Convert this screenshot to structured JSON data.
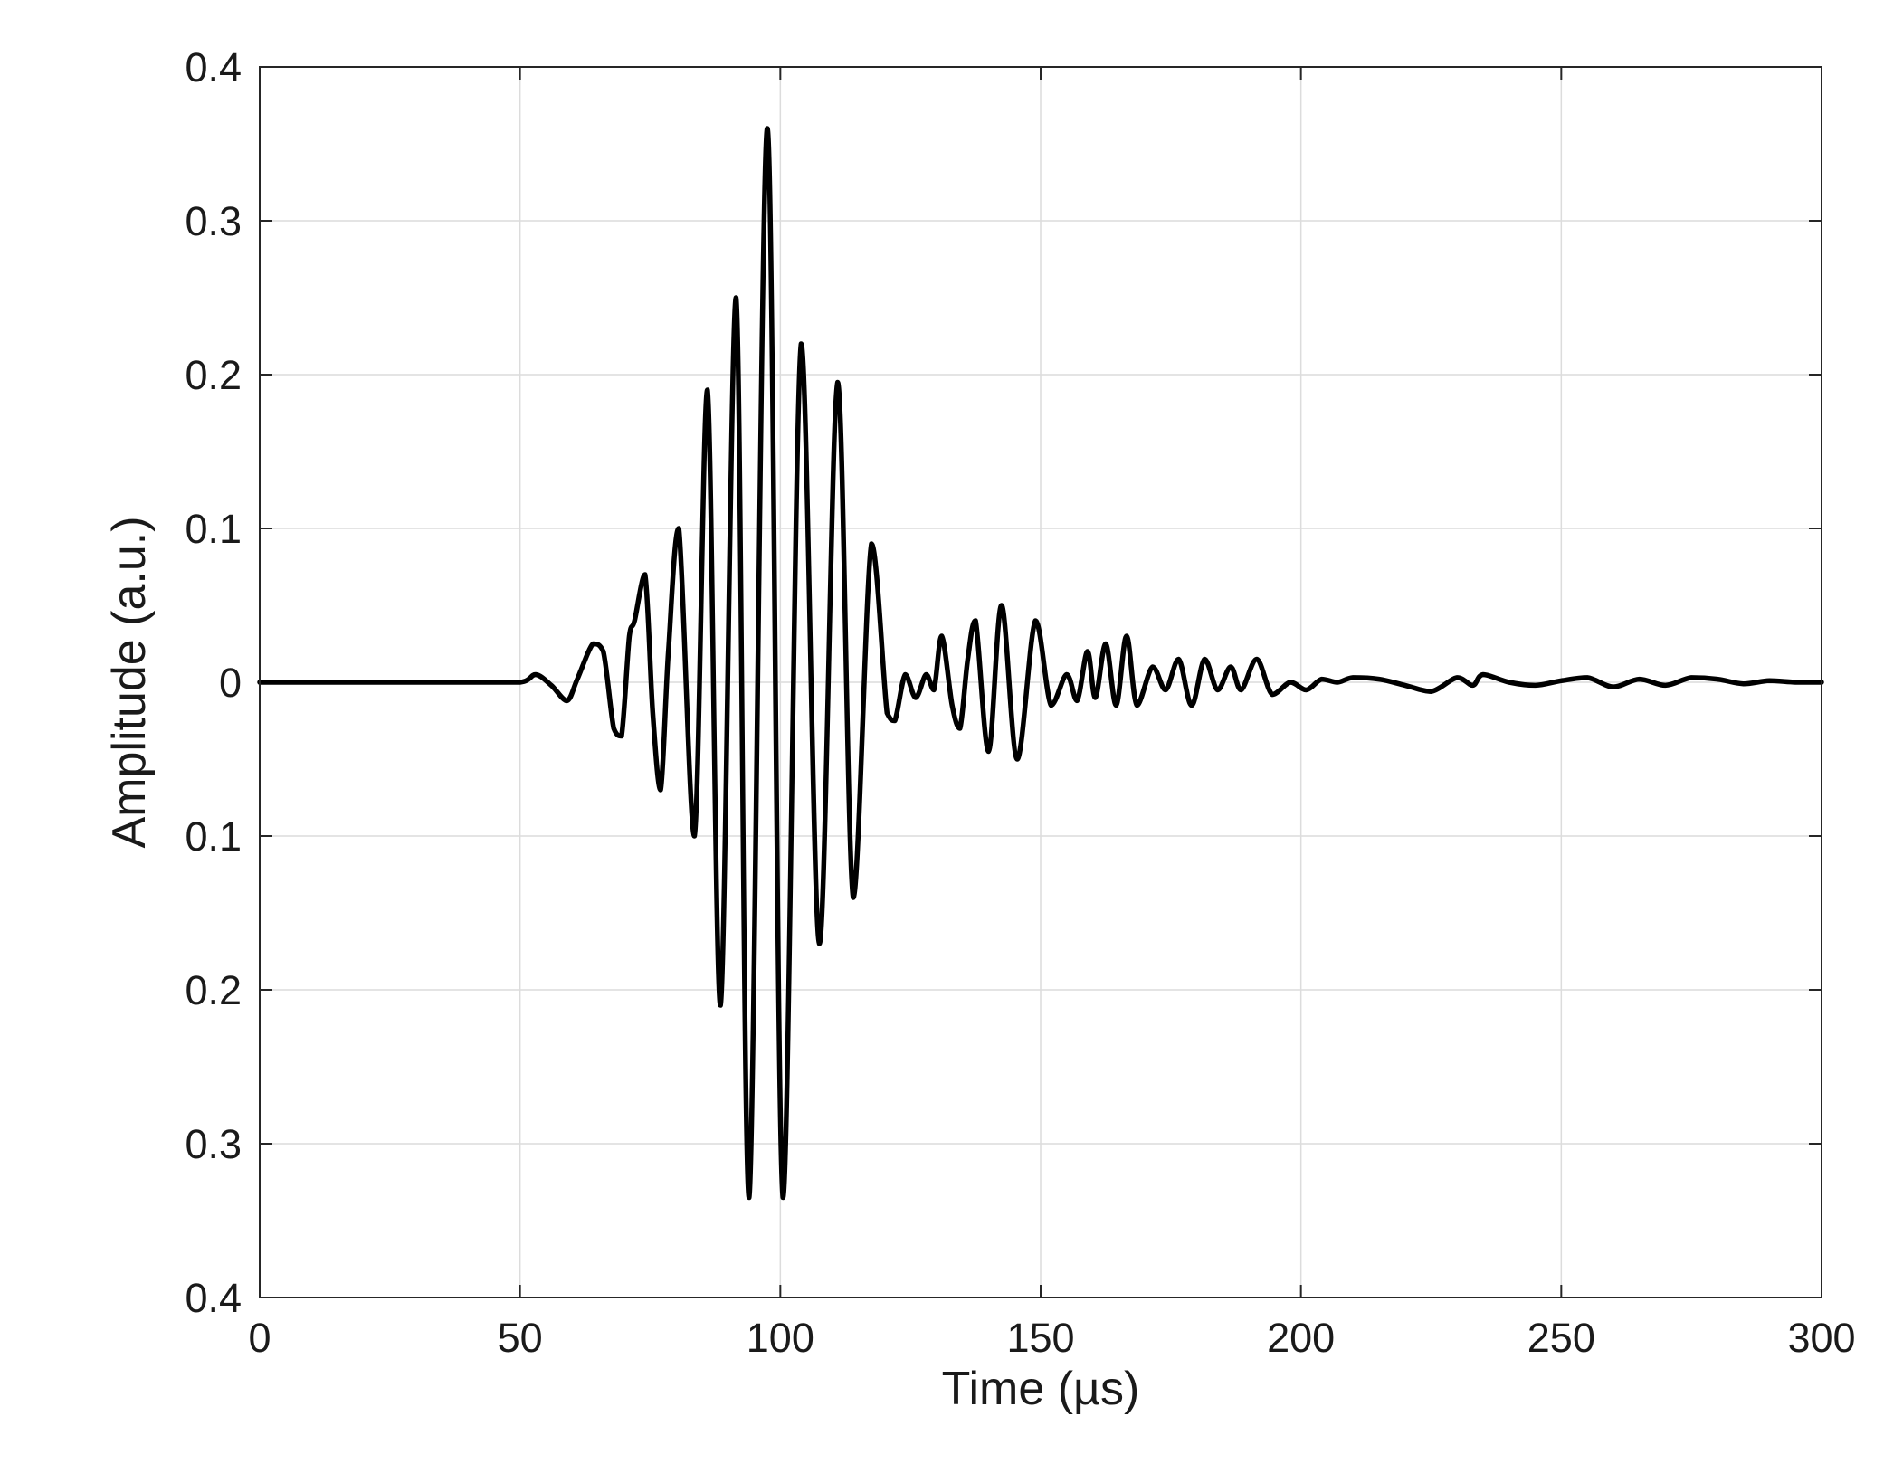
{
  "chart_data": {
    "type": "line",
    "title": "",
    "xlabel": "Time (µs)",
    "ylabel": "Amplitude (a.u.)",
    "xlim": [
      0,
      300
    ],
    "ylim": [
      -0.4,
      0.4
    ],
    "grid": true,
    "x_ticks": [
      0,
      50,
      100,
      150,
      200,
      250,
      300
    ],
    "x_tick_labels": [
      "0",
      "50",
      "100",
      "150",
      "200",
      "250",
      "300"
    ],
    "y_ticks": [
      0.4,
      0.3,
      0.2,
      0.1,
      0,
      -0.1,
      -0.2,
      -0.3,
      -0.4
    ],
    "y_tick_labels": [
      "0.4",
      "0.3",
      "0.2",
      "0.1",
      "0",
      "0.1",
      "0.2",
      "0.3",
      "0.4"
    ],
    "series": [
      {
        "color": "#000000",
        "x": [
          0,
          10,
          20,
          30,
          40,
          50,
          53,
          56,
          59,
          61,
          64,
          66,
          68,
          69.5,
          71,
          72,
          74,
          75.5,
          77,
          78.5,
          80.5,
          83.5,
          86,
          88.5,
          91.5,
          94,
          97.5,
          100.5,
          104,
          107.5,
          111,
          114,
          117.5,
          120.5,
          122,
          124,
          126,
          128,
          129.5,
          131,
          133,
          134.5,
          136,
          137.5,
          140,
          142.5,
          145.5,
          149,
          152,
          155,
          157,
          159,
          160.5,
          162.5,
          164.5,
          166.5,
          168.5,
          171.5,
          174,
          176.5,
          179,
          181.5,
          184,
          186.5,
          188.5,
          191.5,
          194.5,
          198,
          201,
          204,
          207,
          210,
          215,
          220,
          225,
          230,
          233,
          235,
          240,
          245,
          250,
          255,
          260,
          265,
          270,
          275,
          280,
          285,
          290,
          295,
          300
        ],
        "y": [
          0,
          0,
          0,
          0,
          0,
          0,
          0.005,
          -0.002,
          -0.012,
          0.002,
          0.025,
          0.02,
          -0.03,
          -0.035,
          0.03,
          0.04,
          0.07,
          -0.02,
          -0.07,
          0.02,
          0.1,
          -0.1,
          0.19,
          -0.21,
          0.25,
          -0.335,
          0.36,
          -0.335,
          0.22,
          -0.17,
          0.195,
          -0.14,
          0.09,
          -0.02,
          -0.025,
          0.005,
          -0.01,
          0.005,
          -0.005,
          0.03,
          -0.015,
          -0.03,
          0.015,
          0.04,
          -0.045,
          0.05,
          -0.05,
          0.04,
          -0.015,
          0.005,
          -0.012,
          0.02,
          -0.01,
          0.025,
          -0.015,
          0.03,
          -0.015,
          0.01,
          -0.005,
          0.015,
          -0.015,
          0.015,
          -0.005,
          0.01,
          -0.005,
          0.015,
          -0.008,
          0,
          -0.005,
          0.002,
          0,
          0.003,
          0.002,
          -0.002,
          -0.006,
          0.003,
          -0.002,
          0.005,
          0,
          -0.002,
          0.001,
          0.003,
          -0.003,
          0.002,
          -0.002,
          0.003,
          0.002,
          -0.001,
          0.001,
          0,
          0
        ]
      }
    ]
  }
}
